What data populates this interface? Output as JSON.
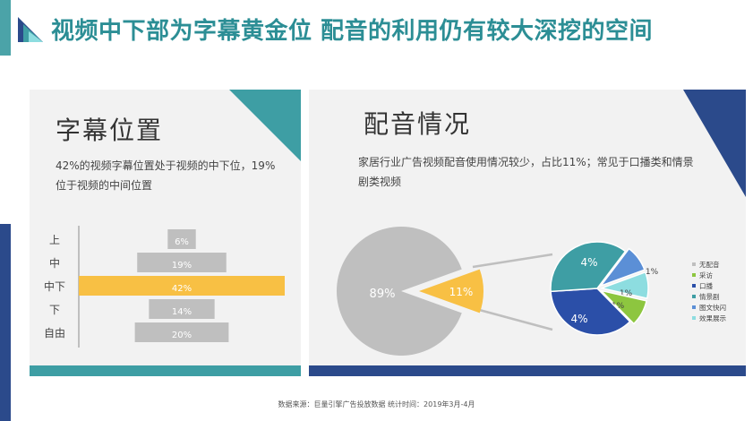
{
  "header": {
    "title": "视频中下部为字幕黄金位  配音的利用仍有较大深挖的空间"
  },
  "left_panel": {
    "heading": "字幕位置",
    "description": "42%的视频字幕位置处于视频的中下位，19%位于视频的中间位置"
  },
  "right_panel": {
    "heading": "配音情况",
    "description": "家居行业广告视频配音使用情况较少，占比11%；常见于口播类和情景剧类视频"
  },
  "source_note": "数据来源：巨量引擎广告投放数据  统计时间：2019年3月-4月",
  "colors": {
    "title": "#2c8e95",
    "teal": "#3e9ea4",
    "navy": "#2b4a8b",
    "gray_bar": "#bfbfbf",
    "highlight": "#f8c044"
  },
  "chart_data": [
    {
      "type": "bar",
      "orientation": "horizontal-centered",
      "categories": [
        "上",
        "中",
        "中下",
        "下",
        "自由"
      ],
      "values": [
        6,
        19,
        42,
        14,
        20
      ],
      "value_labels": [
        "6%",
        "19%",
        "42%",
        "14%",
        "20%"
      ],
      "highlight_index": 2,
      "unit": "%"
    },
    {
      "type": "pie",
      "slices": [
        {
          "label": "89%",
          "value": 89,
          "color": "#bfbfbf"
        },
        {
          "label": "11%",
          "value": 11,
          "color": "#f8c044"
        }
      ]
    },
    {
      "type": "pie",
      "legend_position": "right",
      "slices": [
        {
          "name": "无配音",
          "label": "",
          "value": 0,
          "color": "#bfbfbf"
        },
        {
          "name": "采访",
          "label": "1%",
          "value": 1,
          "color": "#8dc63f"
        },
        {
          "name": "口播",
          "label": "4%",
          "value": 4,
          "color": "#2b4fa8"
        },
        {
          "name": "情景剧",
          "label": "4%",
          "value": 4,
          "color": "#3e9ea4"
        },
        {
          "name": "图文快闪",
          "label": "1%",
          "value": 1,
          "color": "#5b8fd6"
        },
        {
          "name": "效果展示",
          "label": "1%",
          "value": 1,
          "color": "#8ddde0"
        }
      ]
    }
  ]
}
